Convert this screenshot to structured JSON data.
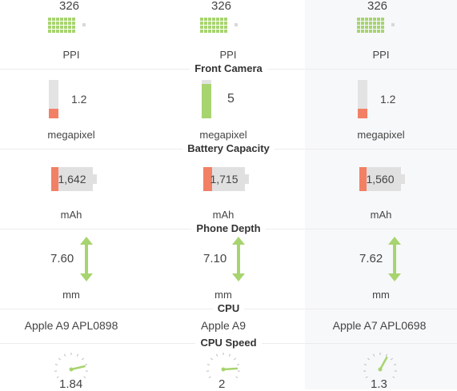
{
  "phones": [
    {
      "ppi": "326",
      "camera": "1.2",
      "camera_fill": 0.25,
      "camera_color": "#f28064",
      "battery": "1,642",
      "battery_fill": 0.18,
      "depth": "7.60",
      "cpu": "Apple A9 APL0898",
      "speed": "1.84",
      "speed_fraction": 0.82
    },
    {
      "ppi": "326",
      "camera": "5",
      "camera_fill": 0.9,
      "camera_color": "#a7d46f",
      "battery": "1,715",
      "battery_fill": 0.22,
      "depth": "7.10",
      "cpu": "Apple A9",
      "speed": "2",
      "speed_fraction": 0.86
    },
    {
      "ppi": "326",
      "camera": "1.2",
      "camera_fill": 0.25,
      "camera_color": "#f28064",
      "battery": "1,560",
      "battery_fill": 0.18,
      "depth": "7.62",
      "cpu": "Apple A7 APL0698",
      "speed": "1.3",
      "speed_fraction": 0.62
    }
  ],
  "units": {
    "ppi": "PPI",
    "camera": "megapixel",
    "battery": "mAh",
    "depth": "mm"
  },
  "sections": {
    "front_camera": "Front Camera",
    "battery": "Battery Capacity",
    "depth": "Phone Depth",
    "cpu": "CPU",
    "cpu_speed": "CPU Speed"
  },
  "colors": {
    "good": "#a7d46f",
    "bad": "#f28064",
    "neutral": "#e0e0e0"
  },
  "icons": {
    "ppi": "pixel-grid-icon",
    "camera": "bar-meter-icon",
    "battery": "battery-icon",
    "depth": "double-arrow-icon",
    "speed": "gauge-icon"
  }
}
